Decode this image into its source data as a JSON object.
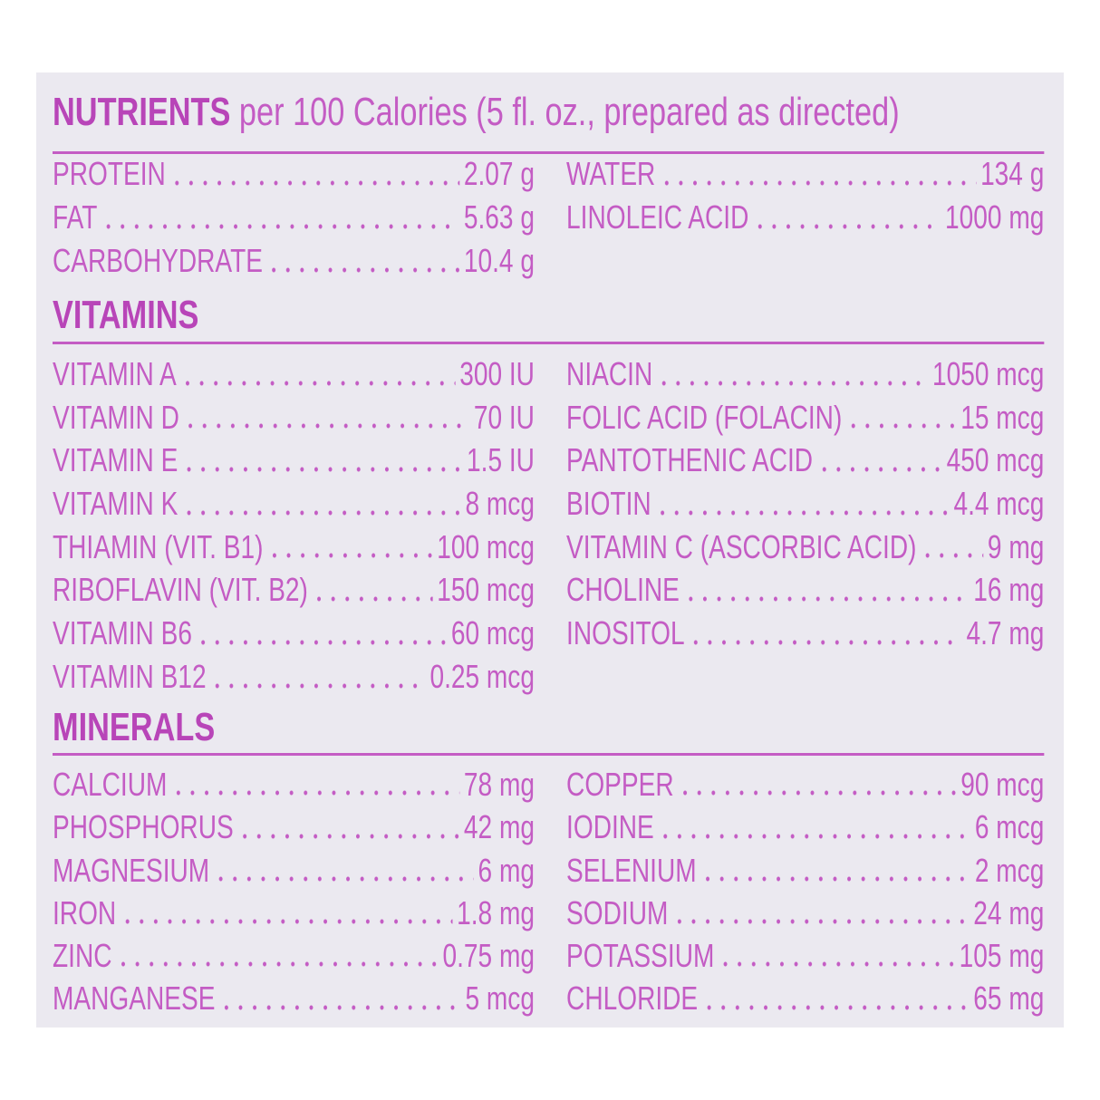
{
  "colors": {
    "text": "#c45cc4",
    "heading": "#b845b8",
    "panel": "#ebe9f0"
  },
  "nutrients": {
    "title": "NUTRIENTS",
    "subtitle": " per 100 Calories (5 fl. oz., prepared as directed)",
    "left": [
      {
        "name": "PROTEIN",
        "value": "2.07 g"
      },
      {
        "name": "FAT",
        "value": "5.63 g"
      },
      {
        "name": "CARBOHYDRATE",
        "value": "10.4 g"
      }
    ],
    "right": [
      {
        "name": "WATER",
        "value": "134 g"
      },
      {
        "name": "LINOLEIC ACID",
        "value": "1000 mg"
      }
    ]
  },
  "vitamins": {
    "title": "VITAMINS",
    "left": [
      {
        "name": "VITAMIN A",
        "value": "300 IU"
      },
      {
        "name": "VITAMIN D",
        "value": "70 IU"
      },
      {
        "name": "VITAMIN E",
        "value": "1.5 IU"
      },
      {
        "name": "VITAMIN K",
        "value": "8 mcg"
      },
      {
        "name": "THIAMIN (VIT. B1)",
        "value": "100 mcg"
      },
      {
        "name": "RIBOFLAVIN (VIT. B2)",
        "value": "150 mcg"
      },
      {
        "name": "VITAMIN B6",
        "value": "60 mcg"
      },
      {
        "name": "VITAMIN B12",
        "value": "0.25 mcg"
      }
    ],
    "right": [
      {
        "name": "NIACIN",
        "value": "1050 mcg"
      },
      {
        "name": "FOLIC ACID (FOLACIN)",
        "value": "15 mcg"
      },
      {
        "name": "PANTOTHENIC ACID",
        "value": "450 mcg"
      },
      {
        "name": "BIOTIN",
        "value": "4.4 mcg"
      },
      {
        "name": "VITAMIN C (ASCORBIC ACID)",
        "value": "9 mg"
      },
      {
        "name": "CHOLINE",
        "value": "16 mg"
      },
      {
        "name": "INOSITOL",
        "value": "4.7 mg"
      }
    ]
  },
  "minerals": {
    "title": "MINERALS",
    "left": [
      {
        "name": "CALCIUM",
        "value": "78 mg"
      },
      {
        "name": "PHOSPHORUS",
        "value": "42 mg"
      },
      {
        "name": "MAGNESIUM",
        "value": "6 mg"
      },
      {
        "name": "IRON",
        "value": "1.8 mg"
      },
      {
        "name": "ZINC",
        "value": "0.75 mg"
      },
      {
        "name": "MANGANESE",
        "value": "5 mcg"
      }
    ],
    "right": [
      {
        "name": "COPPER",
        "value": "90 mcg"
      },
      {
        "name": "IODINE",
        "value": "6 mcg"
      },
      {
        "name": "SELENIUM",
        "value": "2 mcg"
      },
      {
        "name": "SODIUM",
        "value": "24 mg"
      },
      {
        "name": "POTASSIUM",
        "value": "105 mg"
      },
      {
        "name": "CHLORIDE",
        "value": "65 mg"
      }
    ]
  }
}
